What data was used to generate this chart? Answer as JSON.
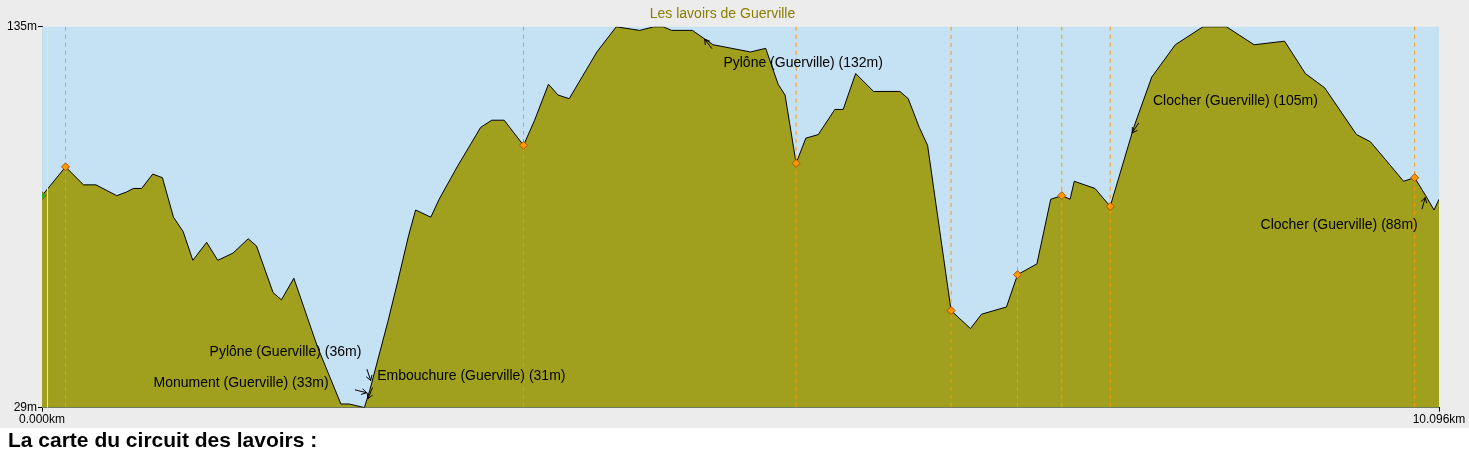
{
  "chart_data": {
    "type": "area",
    "title": "Les lavoirs de Guerville",
    "xlim": [
      0,
      10.096
    ],
    "xticks": [
      {
        "value": 0,
        "label": "0.000km"
      },
      {
        "value": 10.096,
        "label": "10.096km"
      }
    ],
    "ylim": [
      29,
      135
    ],
    "yticks": [
      {
        "value": 29,
        "label": "29m"
      },
      {
        "value": 135,
        "label": "135m"
      }
    ],
    "grid": false,
    "legend": false,
    "series": [
      {
        "color": "#a0a01e",
        "x": [
          0,
          0.17,
          0.3,
          0.39,
          0.54,
          0.61,
          0.66,
          0.72,
          0.8,
          0.87,
          0.95,
          1.02,
          1.09,
          1.19,
          1.27,
          1.38,
          1.49,
          1.55,
          1.67,
          1.73,
          1.82,
          1.99,
          2.16,
          2.22,
          2.33,
          2.37,
          2.5,
          2.57,
          2.65,
          2.7,
          2.81,
          2.87,
          3,
          3.17,
          3.25,
          3.34,
          3.48,
          3.56,
          3.66,
          3.73,
          3.81,
          4.01,
          4.15,
          4.32,
          4.42,
          4.49,
          4.55,
          4.7,
          4.85,
          5.12,
          5.23,
          5.32,
          5.37,
          5.45,
          5.52,
          5.61,
          5.73,
          5.79,
          5.88,
          6.01,
          6.2,
          6.26,
          6.34,
          6.4,
          6.57,
          6.71,
          6.79,
          6.97,
          7.05,
          7.19,
          7.29,
          7.37,
          7.43,
          7.46,
          7.61,
          7.72,
          7.89,
          8.02,
          8.19,
          8.39,
          8.56,
          8.76,
          8.98,
          9.13,
          9.27,
          9.5,
          9.6,
          9.71,
          9.84,
          9.92,
          10,
          10.06,
          10.096
        ],
        "values": [
          88,
          96,
          91,
          91,
          88,
          89,
          90,
          90,
          94,
          93,
          82,
          78,
          70,
          75,
          70,
          72,
          76,
          74,
          61,
          59,
          65,
          46,
          30,
          30,
          29,
          34,
          53,
          64,
          77,
          84,
          82,
          87,
          96,
          107,
          109,
          109,
          102,
          109,
          119,
          116,
          115,
          128,
          135,
          134,
          135,
          135,
          134,
          134,
          130,
          128,
          129,
          119,
          116,
          97,
          104,
          105,
          112,
          112,
          122,
          117,
          117,
          115,
          107,
          102,
          56,
          51,
          55,
          57,
          66,
          69,
          87,
          88,
          87,
          92,
          90,
          85,
          107,
          121,
          130,
          135,
          135,
          130,
          131,
          122,
          118,
          105,
          103,
          98,
          92,
          93,
          88,
          84,
          87
        ]
      },
      {
        "type": "scatter",
        "color": "#ff9900",
        "marker": "diamond",
        "x": [
          0.17,
          3.48,
          5.45,
          6.57,
          7.05,
          7.37,
          7.72,
          9.92
        ],
        "values": [
          96,
          102,
          97,
          56,
          66,
          88,
          85,
          93
        ]
      },
      {
        "type": "scatter",
        "color": "#22bb22",
        "marker": "diamond",
        "x": [
          0
        ],
        "values": [
          88
        ]
      }
    ],
    "ref_lines": [
      {
        "axis": "x",
        "value": 0.04,
        "color": "#ffff00",
        "line_style": "solid"
      },
      {
        "axis": "x",
        "value": 0.17,
        "color": "#ff9900",
        "line_style": "dashed"
      },
      {
        "axis": "x",
        "value": 3.48,
        "color": "#ff9900",
        "line_style": "dashed"
      },
      {
        "axis": "x",
        "value": 5.45,
        "color": "#ff9900",
        "line_style": "dashed"
      },
      {
        "axis": "x",
        "value": 6.57,
        "color": "#ff9900",
        "line_style": "dashed"
      },
      {
        "axis": "x",
        "value": 7.05,
        "color": "#ff9900",
        "line_style": "dashed"
      },
      {
        "axis": "x",
        "value": 7.37,
        "color": "#ff9900",
        "line_style": "dashed"
      },
      {
        "axis": "x",
        "value": 7.72,
        "color": "#ff9900",
        "line_style": "dashed"
      },
      {
        "axis": "x",
        "value": 9.92,
        "color": "#ff9900",
        "line_style": "dashed"
      }
    ],
    "annotations": [
      {
        "text": "Pylône (Guerville) (132m)",
        "x": 4.78,
        "y": 132
      },
      {
        "text": "Pylône (Guerville) (36m)",
        "x": 2.38,
        "y": 36
      },
      {
        "text": "Monument (Guerville) (33m)",
        "x": 2.36,
        "y": 33
      },
      {
        "text": "Embouchure (Guerville) (31m)",
        "x": 2.35,
        "y": 31
      },
      {
        "text": "Clocher (Guerville) (105m)",
        "x": 7.87,
        "y": 105
      },
      {
        "text": "Clocher (Guerville) (88m)",
        "x": 10,
        "y": 88
      },
      "La carte du circuit des lavoirs :"
    ]
  }
}
